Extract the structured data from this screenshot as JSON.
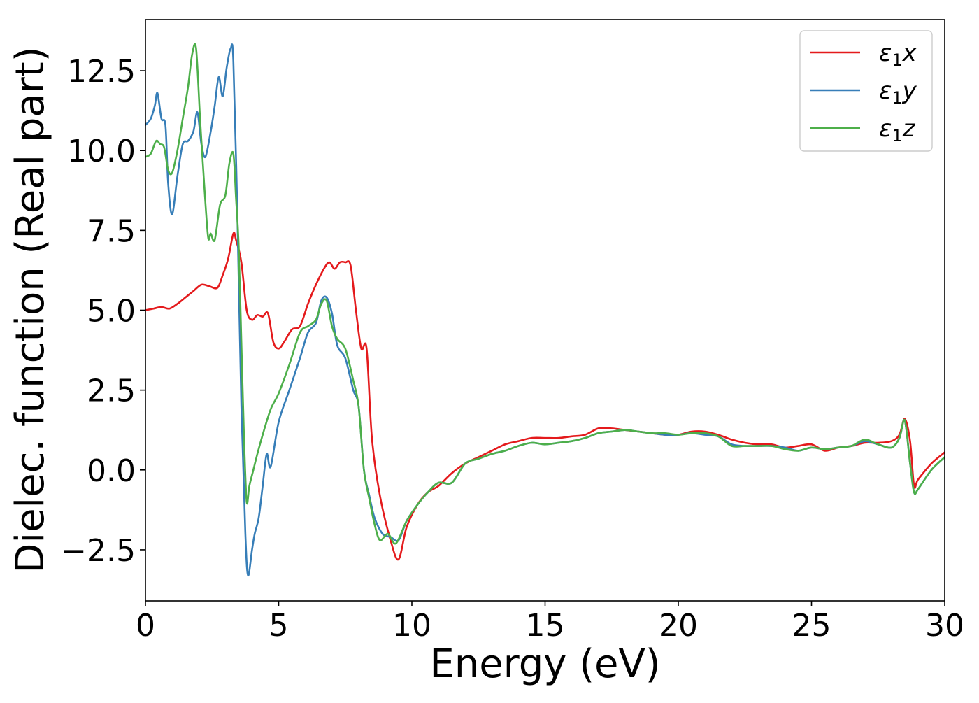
{
  "chart_data": {
    "type": "line",
    "title": "",
    "xlabel": "Energy (eV)",
    "ylabel": "Dielec. function (Real part)",
    "xlim": [
      0,
      30
    ],
    "ylim": [
      -4.1,
      14.1
    ],
    "xticks": [
      0,
      5,
      10,
      15,
      20,
      25,
      30
    ],
    "yticks": [
      -2.5,
      0.0,
      2.5,
      5.0,
      7.5,
      10.0,
      12.5
    ],
    "xtick_labels": [
      "0",
      "5",
      "10",
      "15",
      "20",
      "25",
      "30"
    ],
    "ytick_labels": [
      "−2.5",
      "0.0",
      "2.5",
      "5.0",
      "7.5",
      "10.0",
      "12.5"
    ],
    "grid": false,
    "legend_position": "top-right",
    "series": [
      {
        "name": "ε1x",
        "legend_base": "ε",
        "legend_sub": "1",
        "legend_suffix": "x",
        "color": "#e41a1c",
        "x": [
          0,
          0.3,
          0.6,
          0.9,
          1.2,
          1.5,
          1.8,
          2.1,
          2.4,
          2.7,
          2.9,
          3.1,
          3.3,
          3.4,
          3.6,
          3.8,
          4.0,
          4.2,
          4.4,
          4.6,
          4.8,
          5.0,
          5.2,
          5.5,
          5.8,
          6.1,
          6.4,
          6.7,
          6.9,
          7.1,
          7.3,
          7.5,
          7.7,
          7.9,
          8.1,
          8.3,
          8.5,
          8.8,
          9.2,
          9.5,
          9.8,
          10.2,
          10.6,
          11.0,
          11.5,
          12.0,
          12.5,
          13.0,
          13.5,
          14.0,
          14.5,
          15.0,
          15.5,
          16.0,
          16.5,
          17.0,
          17.5,
          18.0,
          18.5,
          19.0,
          19.5,
          20.0,
          20.5,
          21.0,
          21.5,
          22.0,
          22.5,
          23.0,
          23.5,
          24.0,
          24.5,
          25.0,
          25.5,
          26.0,
          26.5,
          27.0,
          27.5,
          28.0,
          28.3,
          28.5,
          28.7,
          28.85,
          29.0,
          29.5,
          30.0
        ],
        "y": [
          5.0,
          5.05,
          5.1,
          5.05,
          5.2,
          5.4,
          5.6,
          5.8,
          5.75,
          5.7,
          6.1,
          6.6,
          7.4,
          7.2,
          6.5,
          5.0,
          4.7,
          4.85,
          4.8,
          4.9,
          4.0,
          3.8,
          4.0,
          4.4,
          4.5,
          5.2,
          5.8,
          6.3,
          6.5,
          6.3,
          6.5,
          6.5,
          6.4,
          5.0,
          3.8,
          3.8,
          1.0,
          -0.8,
          -2.2,
          -2.8,
          -1.8,
          -1.1,
          -0.7,
          -0.5,
          -0.1,
          0.2,
          0.4,
          0.6,
          0.8,
          0.9,
          1.0,
          1.0,
          1.0,
          1.05,
          1.1,
          1.3,
          1.3,
          1.25,
          1.2,
          1.15,
          1.1,
          1.1,
          1.2,
          1.2,
          1.1,
          0.95,
          0.85,
          0.8,
          0.8,
          0.7,
          0.75,
          0.8,
          0.6,
          0.7,
          0.75,
          0.85,
          0.85,
          0.9,
          1.1,
          1.6,
          0.9,
          -0.5,
          -0.3,
          0.2,
          0.55
        ]
      },
      {
        "name": "ε1y",
        "legend_base": "ε",
        "legend_sub": "1",
        "legend_suffix": "y",
        "color": "#377eb8",
        "x": [
          0,
          0.2,
          0.35,
          0.45,
          0.6,
          0.75,
          0.85,
          1.0,
          1.2,
          1.4,
          1.6,
          1.8,
          1.95,
          2.1,
          2.25,
          2.45,
          2.6,
          2.75,
          2.9,
          3.05,
          3.2,
          3.3,
          3.45,
          3.6,
          3.75,
          3.85,
          4.0,
          4.1,
          4.25,
          4.4,
          4.55,
          4.7,
          5.0,
          5.4,
          5.8,
          6.1,
          6.4,
          6.6,
          6.8,
          7.0,
          7.2,
          7.5,
          7.8,
          8.0,
          8.2,
          8.4,
          8.6,
          8.9,
          9.2,
          9.5,
          9.8,
          10.2,
          10.6,
          11.0,
          11.5,
          12.0,
          12.5,
          13.0,
          13.5,
          14.0,
          14.5,
          15.0,
          15.5,
          16.0,
          16.5,
          17.0,
          17.5,
          18.0,
          18.5,
          19.0,
          19.5,
          20.0,
          20.5,
          21.0,
          21.5,
          22.0,
          22.5,
          23.0,
          23.5,
          24.0,
          24.5,
          25.0,
          25.5,
          26.0,
          26.5,
          27.0,
          27.5,
          28.0,
          28.3,
          28.5,
          28.7,
          28.85,
          29.0,
          29.5,
          30.0
        ],
        "y": [
          10.8,
          11.0,
          11.4,
          11.8,
          11.0,
          10.8,
          9.0,
          8.0,
          9.2,
          10.2,
          10.3,
          10.6,
          11.2,
          10.2,
          9.8,
          10.6,
          11.4,
          12.3,
          11.7,
          12.6,
          13.2,
          12.8,
          8.0,
          2.0,
          -2.0,
          -3.3,
          -2.5,
          -2.0,
          -1.5,
          -0.5,
          0.5,
          0.1,
          1.5,
          2.5,
          3.5,
          4.3,
          4.6,
          5.3,
          5.4,
          4.9,
          3.9,
          3.5,
          2.5,
          2.0,
          0.0,
          -0.8,
          -1.5,
          -2.0,
          -2.1,
          -2.2,
          -1.6,
          -1.1,
          -0.7,
          -0.4,
          -0.4,
          0.2,
          0.35,
          0.5,
          0.6,
          0.75,
          0.85,
          0.8,
          0.85,
          0.9,
          1.0,
          1.15,
          1.2,
          1.25,
          1.2,
          1.15,
          1.1,
          1.1,
          1.15,
          1.1,
          1.05,
          0.8,
          0.75,
          0.75,
          0.75,
          0.7,
          0.6,
          0.7,
          0.65,
          0.7,
          0.75,
          0.9,
          0.8,
          0.7,
          1.0,
          1.55,
          0.2,
          -0.7,
          -0.6,
          0.0,
          0.4
        ]
      },
      {
        "name": "ε1z",
        "legend_base": "ε",
        "legend_sub": "1",
        "legend_suffix": "z",
        "color": "#4daf4a",
        "x": [
          0,
          0.2,
          0.4,
          0.55,
          0.7,
          0.85,
          1.0,
          1.2,
          1.4,
          1.6,
          1.75,
          1.9,
          2.05,
          2.2,
          2.35,
          2.45,
          2.6,
          2.8,
          3.0,
          3.15,
          3.3,
          3.4,
          3.5,
          3.6,
          3.7,
          3.8,
          3.9,
          4.05,
          4.2,
          4.4,
          4.7,
          5.0,
          5.4,
          5.8,
          6.1,
          6.4,
          6.6,
          6.8,
          7.0,
          7.2,
          7.5,
          7.8,
          8.0,
          8.2,
          8.4,
          8.6,
          8.8,
          9.1,
          9.4,
          9.8,
          10.2,
          10.6,
          11.0,
          11.5,
          12.0,
          12.5,
          13.0,
          13.5,
          14.0,
          14.5,
          15.0,
          15.5,
          16.0,
          16.5,
          17.0,
          17.5,
          18.0,
          18.5,
          19.0,
          19.5,
          20.0,
          20.5,
          21.0,
          21.5,
          22.0,
          22.5,
          23.0,
          23.5,
          24.0,
          24.5,
          25.0,
          25.5,
          26.0,
          26.5,
          27.0,
          27.5,
          28.0,
          28.3,
          28.5,
          28.7,
          28.85,
          29.0,
          29.5,
          30.0
        ],
        "y": [
          9.8,
          9.9,
          10.3,
          10.2,
          10.1,
          9.4,
          9.3,
          10.0,
          11.0,
          12.0,
          13.0,
          13.2,
          11.0,
          9.0,
          7.3,
          7.4,
          7.2,
          8.3,
          8.6,
          9.6,
          9.9,
          8.5,
          7.0,
          4.0,
          1.0,
          -1.0,
          -0.5,
          0.0,
          0.5,
          1.1,
          1.9,
          2.4,
          3.3,
          4.3,
          4.5,
          4.7,
          5.2,
          5.3,
          4.5,
          4.1,
          3.8,
          2.8,
          2.0,
          0.0,
          -0.9,
          -1.7,
          -2.2,
          -2.0,
          -2.3,
          -1.6,
          -1.1,
          -0.7,
          -0.4,
          -0.4,
          0.2,
          0.35,
          0.5,
          0.6,
          0.75,
          0.85,
          0.8,
          0.85,
          0.9,
          1.0,
          1.15,
          1.2,
          1.25,
          1.2,
          1.15,
          1.15,
          1.1,
          1.15,
          1.15,
          1.05,
          0.75,
          0.75,
          0.75,
          0.75,
          0.65,
          0.6,
          0.7,
          0.65,
          0.7,
          0.75,
          0.95,
          0.8,
          0.7,
          1.0,
          1.55,
          0.2,
          -0.7,
          -0.6,
          0.0,
          0.4
        ]
      }
    ]
  }
}
